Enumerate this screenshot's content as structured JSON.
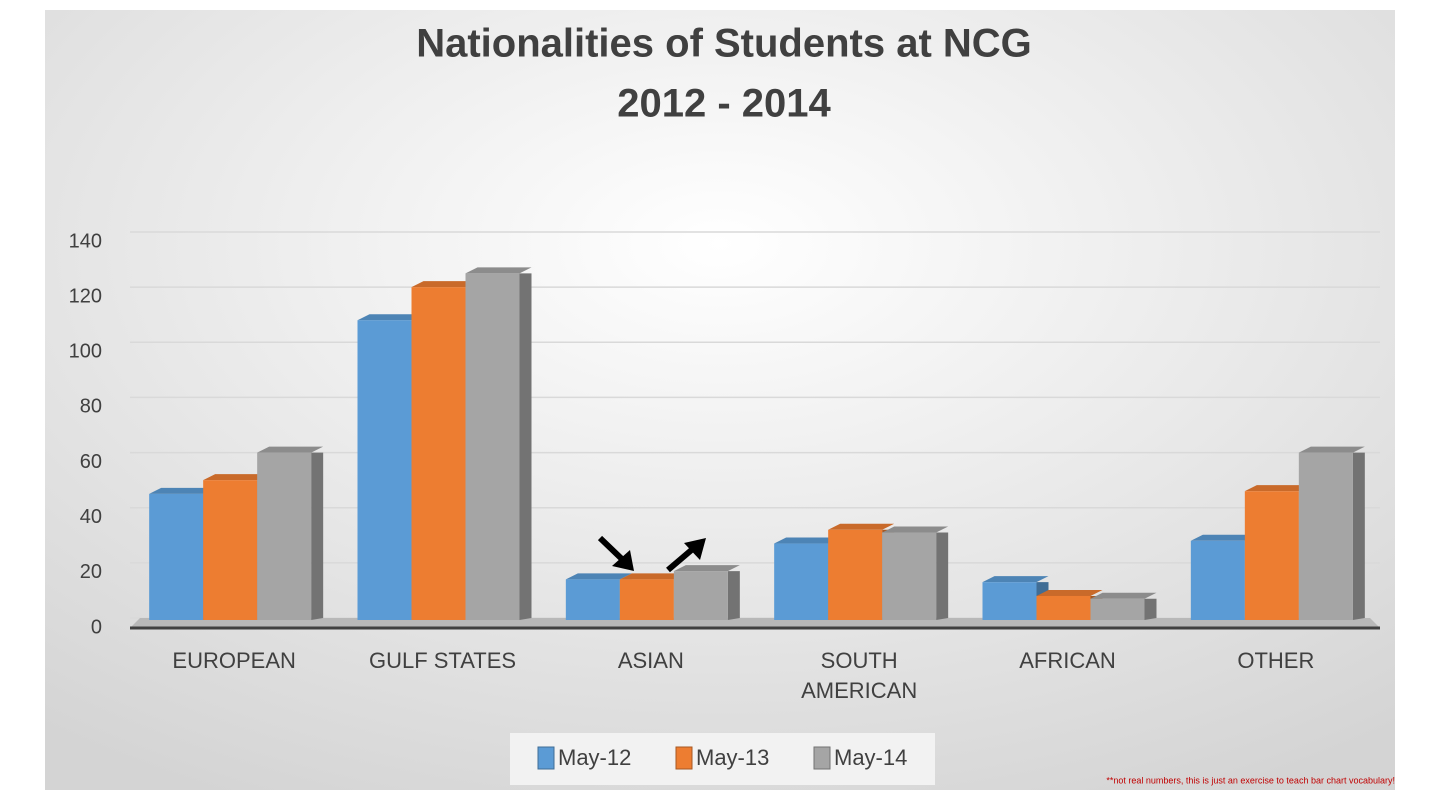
{
  "chart_data": {
    "type": "bar",
    "title": "Nationalities of Students at NCG",
    "subtitle": "2012 - 2014",
    "categories": [
      "EUROPEAN",
      "GULF STATES",
      "ASIAN",
      "SOUTH AMERICAN",
      "AFRICAN",
      "OTHER"
    ],
    "series": [
      {
        "name": "May-12",
        "color": "#5b9bd5",
        "values": [
          45,
          108,
          14,
          27,
          13,
          28
        ]
      },
      {
        "name": "May-13",
        "color": "#ed7d31",
        "values": [
          50,
          120,
          14,
          32,
          8,
          46
        ]
      },
      {
        "name": "May-14",
        "color": "#a5a5a5",
        "values": [
          60,
          125,
          17,
          31,
          7,
          60
        ]
      }
    ],
    "ylim": [
      0,
      140
    ],
    "yticks": [
      0,
      20,
      40,
      60,
      80,
      100,
      120,
      140
    ],
    "grid": true,
    "legend": "bottom",
    "note": "**not real numbers, this is just an exercise to teach bar chart vocabulary!"
  }
}
